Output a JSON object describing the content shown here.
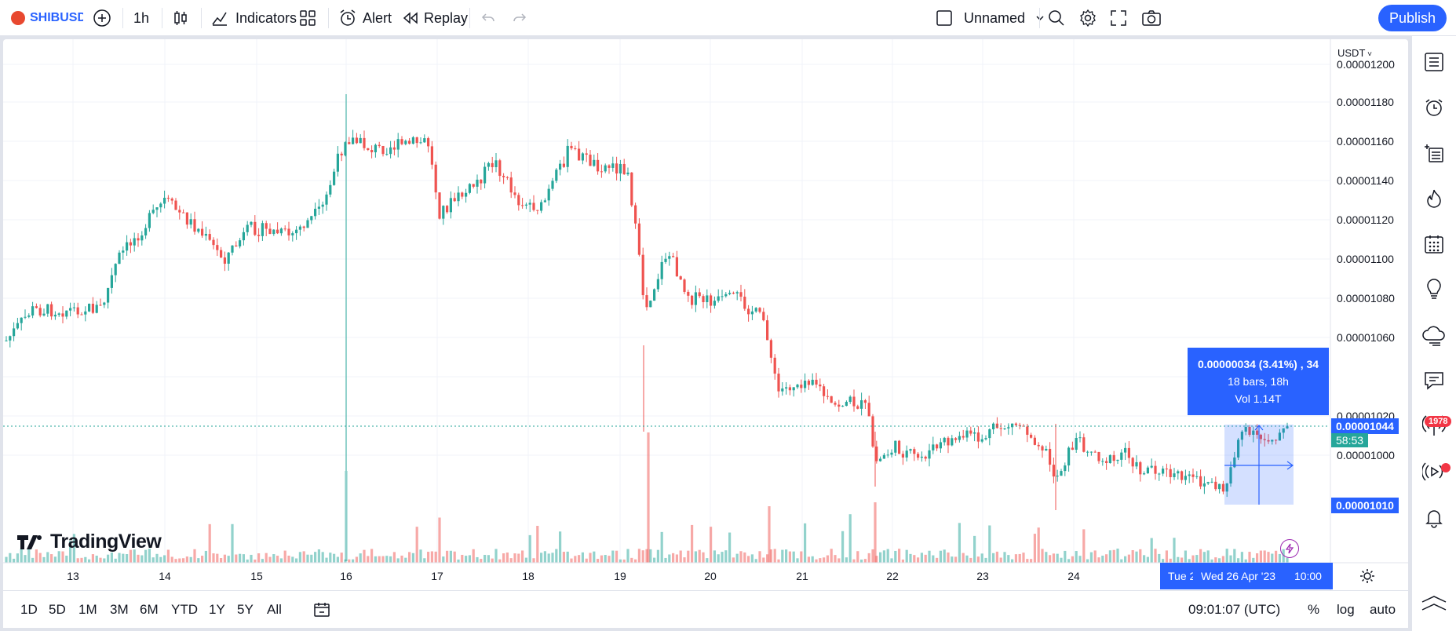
{
  "header": {
    "symbol": "SHIBUSDT",
    "interval": "1h",
    "indicators_label": "Indicators",
    "alert_label": "Alert",
    "replay_label": "Replay",
    "layout_name": "Unnamed",
    "publish_label": "Publish"
  },
  "price_axis": {
    "currency": "USDT",
    "ticks": [
      "0.00001200",
      "0.00001180",
      "0.00001160",
      "0.00001140",
      "0.00001120",
      "0.00001100",
      "0.00001080",
      "0.00001060",
      "0.00001040",
      "0.00001020",
      "0.00001000"
    ],
    "current_price": "0.00001044",
    "countdown": "58:53",
    "range_low": "0.00001010"
  },
  "time_axis": {
    "labels": [
      "13",
      "14",
      "15",
      "16",
      "17",
      "18",
      "19",
      "20",
      "21",
      "22",
      "23",
      "24"
    ],
    "partial_label": "Tue 2",
    "cursor_date": "Wed 26 Apr '23",
    "cursor_time": "10:00"
  },
  "measure": {
    "change": "0.00000034 (3.41%) , 34",
    "bars": "18 bars, 18h",
    "volume": "Vol 1.14T"
  },
  "watermark": "TradingView",
  "bottom": {
    "ranges": [
      "1D",
      "5D",
      "1M",
      "3M",
      "6M",
      "YTD",
      "1Y",
      "5Y",
      "All"
    ],
    "clock": "09:01:07 (UTC)",
    "percent_label": "%",
    "log_label": "log",
    "auto_label": "auto"
  },
  "sidebar": {
    "notification_count": "1978"
  },
  "colors": {
    "up": "#26a69a",
    "down": "#ef5350",
    "accent": "#2962ff"
  }
}
